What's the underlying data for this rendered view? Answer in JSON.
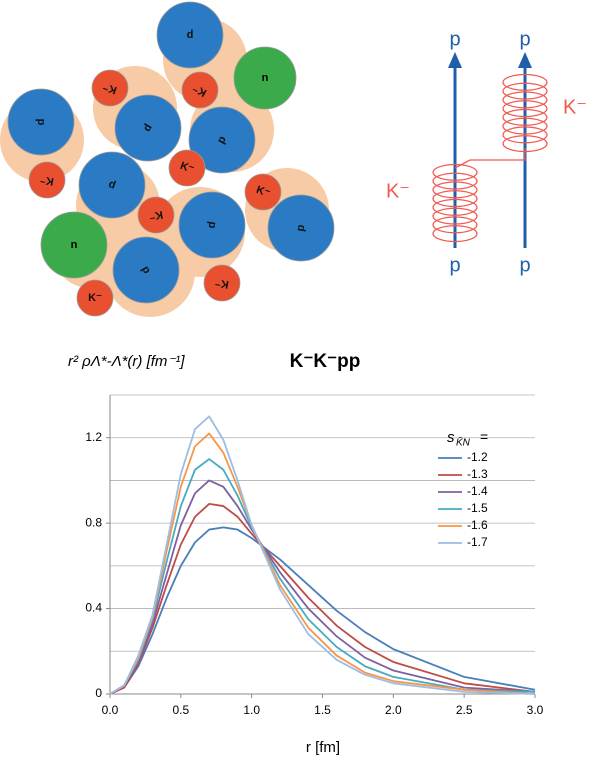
{
  "cluster": {
    "labels": [
      "p",
      "p",
      "p",
      "p",
      "p",
      "p",
      "p",
      "p",
      "n",
      "n",
      "K⁻",
      "K⁻",
      "K⁻",
      "K⁻",
      "K⁻",
      "K⁻",
      "K⁻",
      "K⁻"
    ]
  },
  "diagram": {
    "top": [
      "p",
      "p"
    ],
    "bottom": [
      "p",
      "p"
    ],
    "kaons": [
      "K⁻",
      "K⁻"
    ]
  },
  "chart_data": {
    "type": "line",
    "title": "K⁻K⁻pp",
    "y_label": "r² ρΛ*-Λ*(r)  [fm⁻¹]",
    "x_label": "r  [fm]",
    "legend_title": "s",
    "legend_title_sub": "K̄N",
    "legend_title_end": "=",
    "x": [
      0,
      0.1,
      0.2,
      0.3,
      0.4,
      0.5,
      0.6,
      0.7,
      0.8,
      0.9,
      1.0,
      1.2,
      1.4,
      1.6,
      1.8,
      2.0,
      2.5,
      3.0
    ],
    "series": [
      {
        "name": "-1.2",
        "color": "#4a7ebb",
        "values": [
          0,
          0.03,
          0.13,
          0.28,
          0.45,
          0.6,
          0.71,
          0.77,
          0.78,
          0.77,
          0.73,
          0.63,
          0.51,
          0.39,
          0.29,
          0.21,
          0.08,
          0.02
        ]
      },
      {
        "name": "-1.3",
        "color": "#be4b48",
        "values": [
          0,
          0.03,
          0.14,
          0.31,
          0.51,
          0.7,
          0.83,
          0.89,
          0.88,
          0.83,
          0.75,
          0.6,
          0.45,
          0.32,
          0.22,
          0.15,
          0.05,
          0.01
        ]
      },
      {
        "name": "-1.4",
        "color": "#7d60a0",
        "values": [
          0,
          0.04,
          0.15,
          0.33,
          0.56,
          0.79,
          0.94,
          1.0,
          0.97,
          0.88,
          0.77,
          0.57,
          0.4,
          0.27,
          0.17,
          0.11,
          0.03,
          0.01
        ]
      },
      {
        "name": "-1.5",
        "color": "#46aac5",
        "values": [
          0,
          0.04,
          0.16,
          0.35,
          0.62,
          0.88,
          1.05,
          1.1,
          1.05,
          0.93,
          0.78,
          0.54,
          0.35,
          0.22,
          0.13,
          0.08,
          0.02,
          0.01
        ]
      },
      {
        "name": "-1.6",
        "color": "#f79646",
        "values": [
          0,
          0.04,
          0.17,
          0.36,
          0.67,
          0.97,
          1.16,
          1.22,
          1.13,
          0.97,
          0.79,
          0.51,
          0.31,
          0.18,
          0.1,
          0.06,
          0.02,
          0
        ]
      },
      {
        "name": "-1.7",
        "color": "#9dbde3",
        "values": [
          0,
          0.04,
          0.18,
          0.37,
          0.7,
          1.03,
          1.24,
          1.3,
          1.19,
          1.0,
          0.79,
          0.49,
          0.28,
          0.16,
          0.09,
          0.05,
          0.01,
          0
        ]
      }
    ],
    "xlim": [
      0,
      3
    ],
    "xticks": [
      {
        "value": 0,
        "label": "0.0"
      },
      0.5,
      {
        "value": 1,
        "label": "1.0"
      },
      1.5,
      {
        "value": 2,
        "label": "2.0"
      },
      2.5,
      {
        "value": 3,
        "label": "3.0"
      }
    ],
    "ylim": [
      0,
      1.4
    ],
    "yticks": [
      0,
      0.4,
      0.8,
      1.2
    ],
    "grid_lines": [
      0.2,
      0.4,
      0.6,
      0.8,
      1.0,
      1.2,
      1.4
    ],
    "grid": true
  }
}
